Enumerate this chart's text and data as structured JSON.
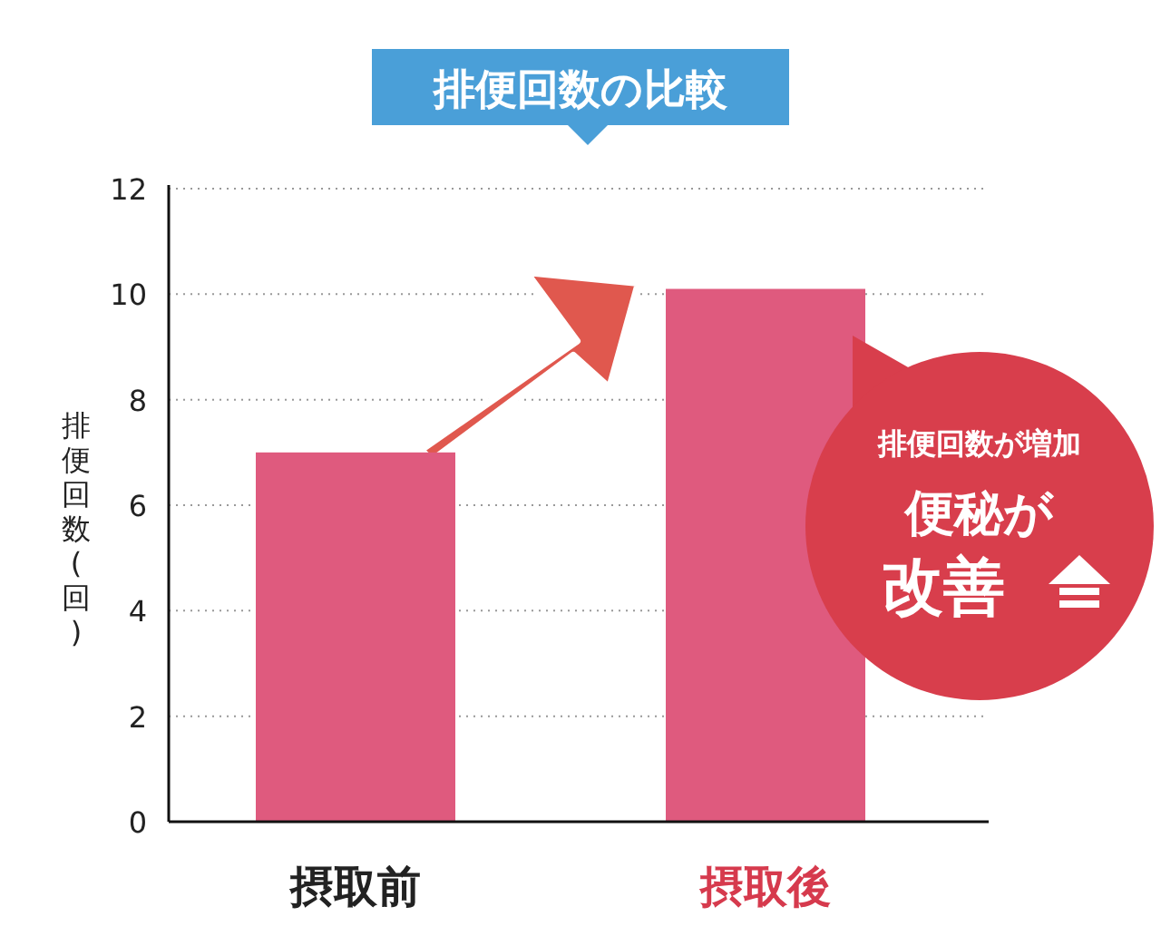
{
  "chart_data": {
    "type": "bar",
    "title": "排便回数の比較",
    "ylabel": "排便回数(回)",
    "categories": [
      "摂取前",
      "摂取後"
    ],
    "values": [
      7.0,
      10.1
    ],
    "color": "#df5a7e",
    "ylim": [
      0,
      12
    ],
    "yticks": [
      0,
      2,
      4,
      6,
      8,
      10,
      12
    ],
    "grid": "y",
    "annotations": [
      "排便回数が増加",
      "便秘が",
      "改善"
    ]
  }
}
